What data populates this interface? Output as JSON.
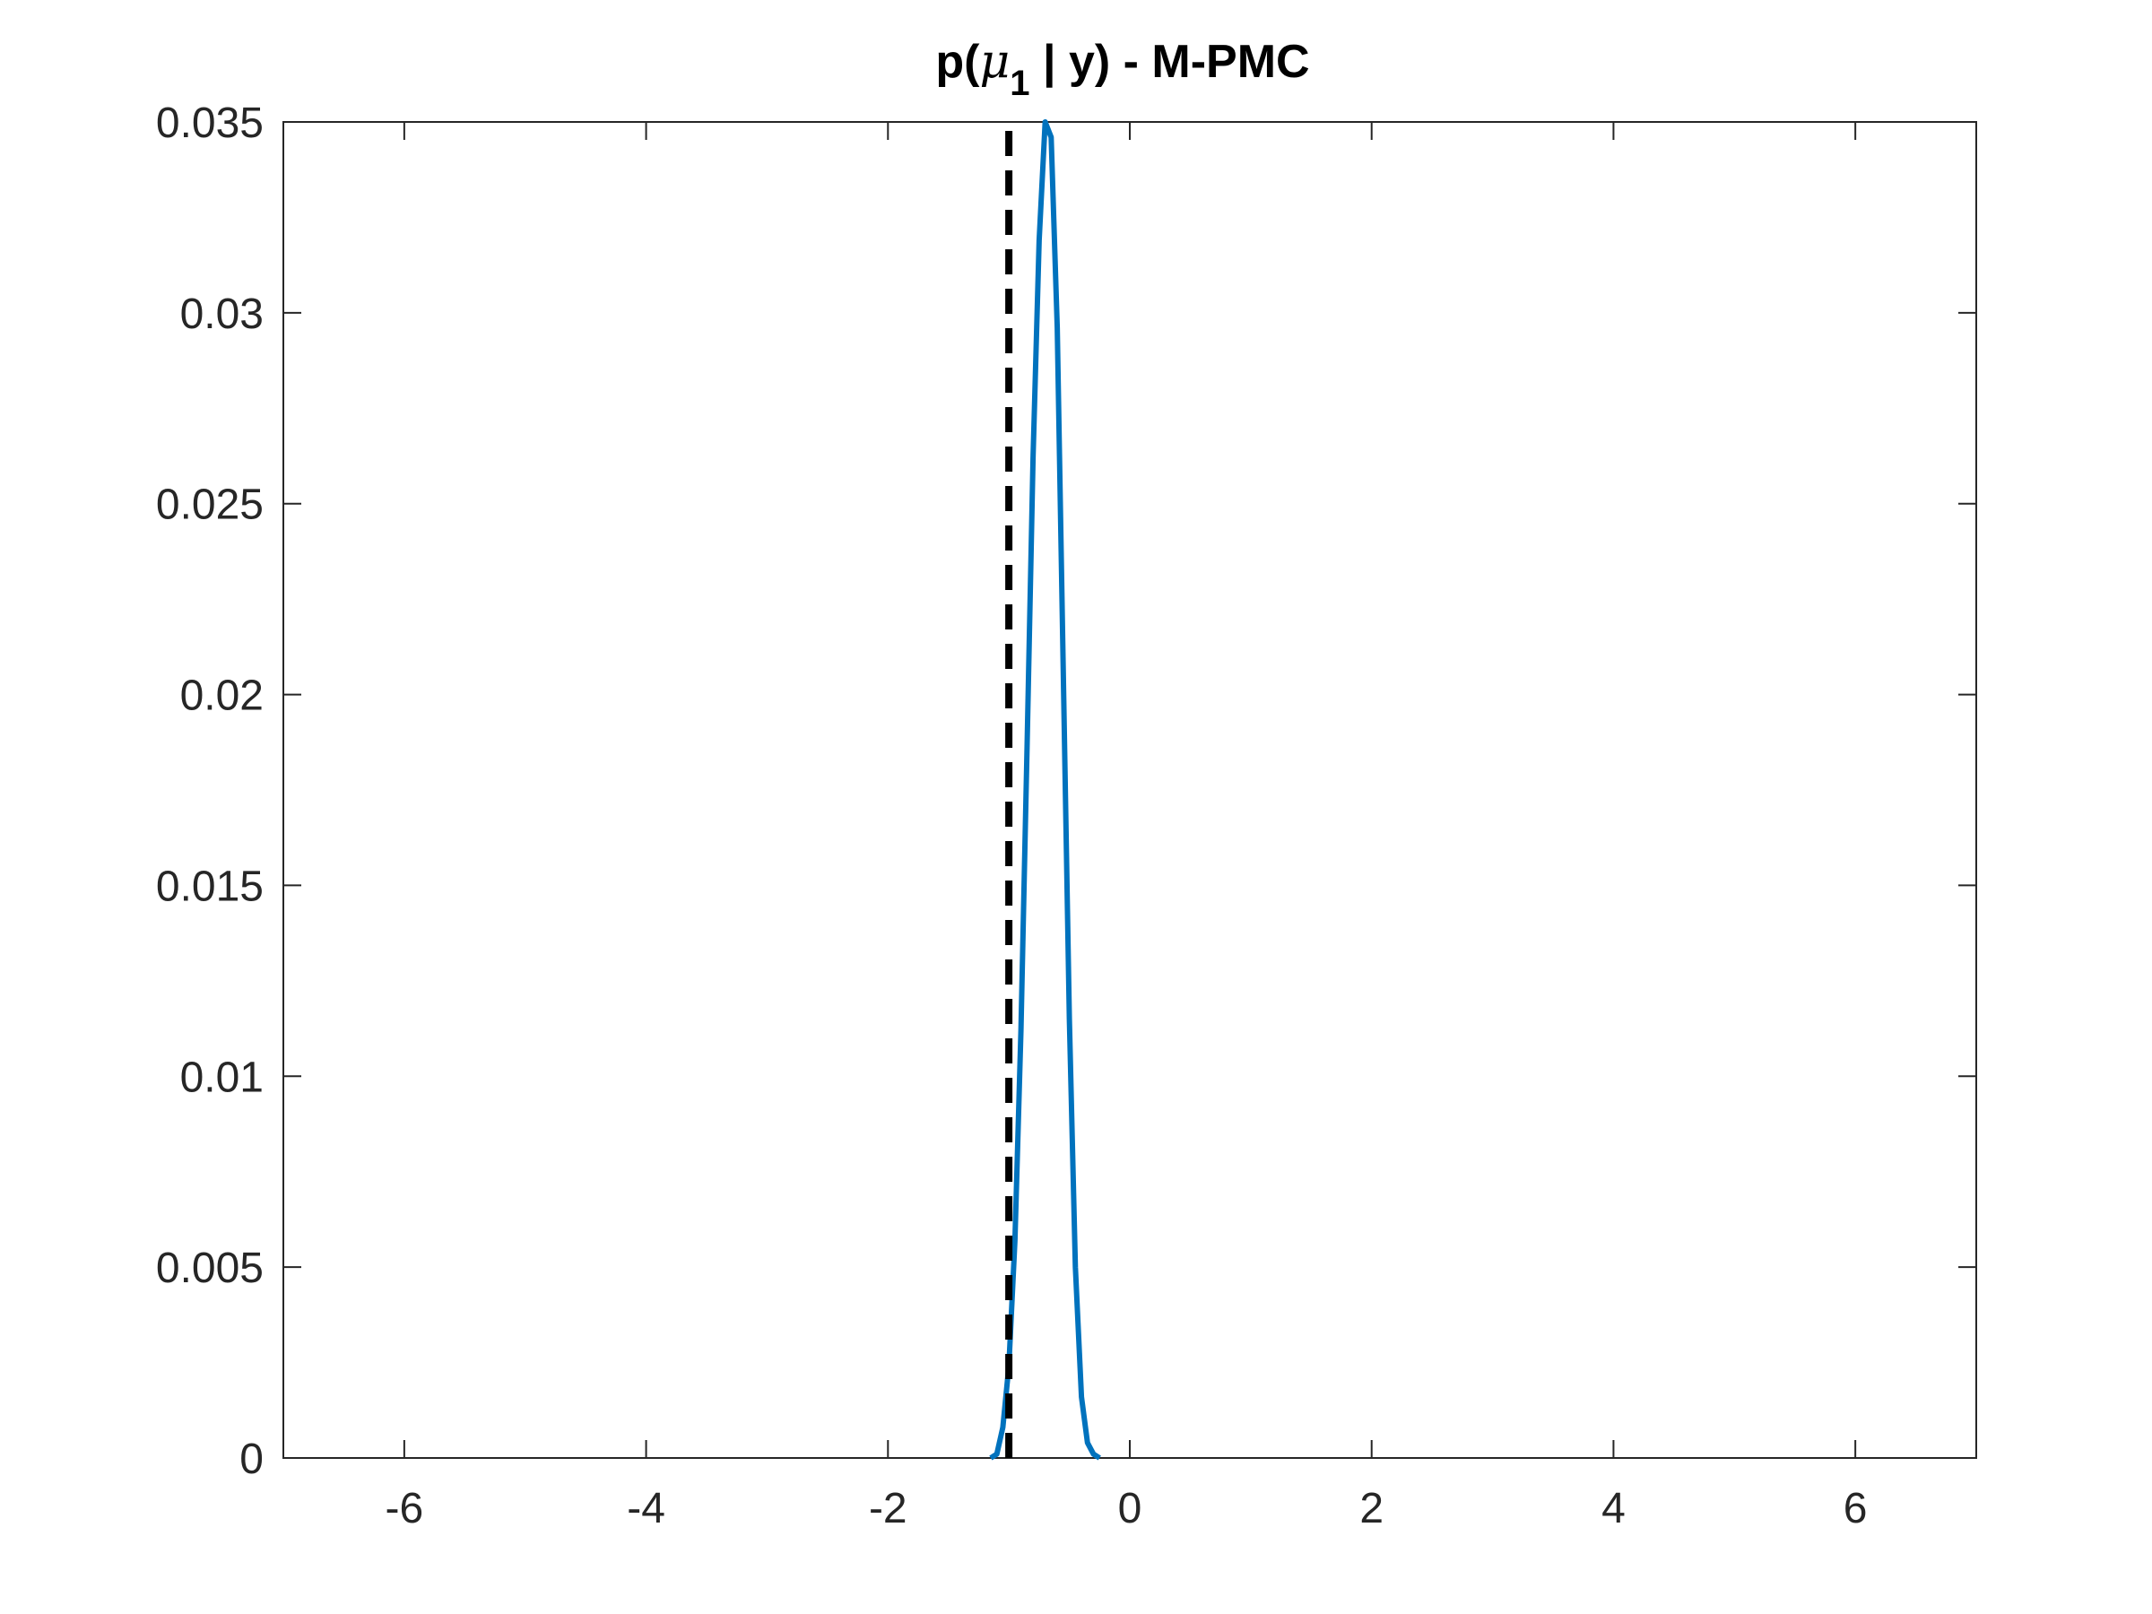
{
  "chart_data": {
    "type": "line",
    "title": {
      "prefix": "p(",
      "symbol": "μ",
      "subscript": "1",
      "suffix": " | y) - M-PMC"
    },
    "xlabel": "",
    "ylabel": "",
    "xlim": [
      -7,
      7
    ],
    "ylim": [
      0,
      0.035
    ],
    "x_ticks": [
      -6,
      -4,
      -2,
      0,
      2,
      4,
      6
    ],
    "x_tick_labels": [
      "-6",
      "-4",
      "-2",
      "0",
      "2",
      "4",
      "6"
    ],
    "y_ticks": [
      0,
      0.005,
      0.01,
      0.015,
      0.02,
      0.025,
      0.03,
      0.035
    ],
    "y_tick_labels": [
      "0",
      "0.005",
      "0.01",
      "0.015",
      "0.02",
      "0.025",
      "0.03",
      "0.035"
    ],
    "grid": false,
    "series": [
      {
        "color": "#0072BD",
        "style": "solid",
        "x": [
          -1.15,
          -1.1,
          -1.05,
          -1.0,
          -0.95,
          -0.9,
          -0.85,
          -0.8,
          -0.75,
          -0.7,
          -0.65,
          -0.6,
          -0.55,
          -0.5,
          -0.45,
          -0.4,
          -0.35,
          -0.3,
          -0.25
        ],
        "y": [
          0.0,
          0.0001,
          0.0008,
          0.0024,
          0.0057,
          0.0112,
          0.0186,
          0.0262,
          0.0319,
          0.035,
          0.0346,
          0.0296,
          0.0206,
          0.0115,
          0.005,
          0.0016,
          0.0004,
          0.0001,
          0.0
        ]
      },
      {
        "color": "#000000",
        "style": "dashed",
        "x": [
          -1.0,
          -1.0
        ],
        "y": [
          0.0,
          0.035
        ]
      }
    ]
  }
}
